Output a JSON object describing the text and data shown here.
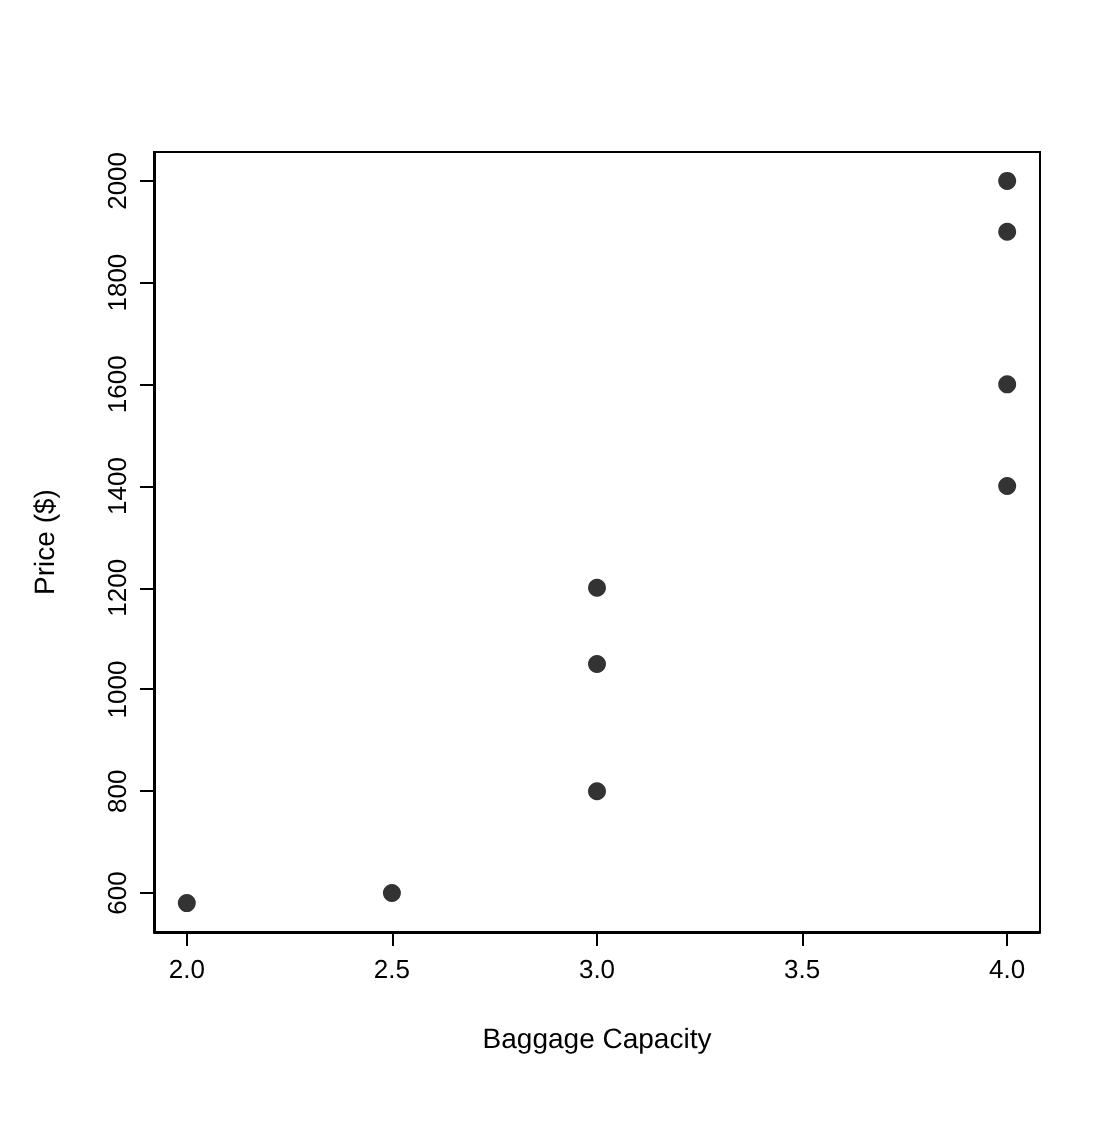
{
  "chart_data": {
    "type": "scatter",
    "xlabel": "Baggage Capacity",
    "ylabel": "Price ($)",
    "x": [
      2.0,
      2.5,
      3,
      3,
      3,
      4,
      4,
      4,
      4
    ],
    "series": [
      {
        "color": "#000000",
        "values": [
          580,
          600,
          800,
          1050,
          1200,
          1400,
          1600,
          1900,
          2000
        ]
      }
    ],
    "xlim": [
      1.92,
      4.08
    ],
    "ylim": [
      523.2,
      2056.8
    ],
    "xticks": [
      {
        "value": 2,
        "label": "2.0"
      },
      {
        "value": 2.5,
        "label": "2.5"
      },
      {
        "value": 3,
        "label": "3.0"
      },
      {
        "value": 3.5,
        "label": "3.5"
      },
      {
        "value": 4,
        "label": "4.0"
      }
    ],
    "yticks": [
      600,
      800,
      1000,
      1200,
      1400,
      1600,
      1800,
      2000
    ],
    "marker": "circle",
    "grid": false
  }
}
